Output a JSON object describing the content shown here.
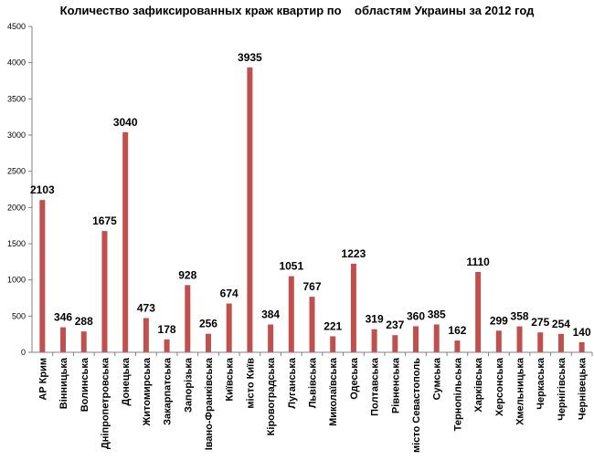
{
  "chart_data": {
    "type": "bar",
    "title": "Количество зафиксированных краж квартир по    областям Украины за 2012 год",
    "xlabel": "",
    "ylabel": "",
    "ylim": [
      0,
      4500
    ],
    "yticks": [
      0,
      500,
      1000,
      1500,
      2000,
      2500,
      3000,
      3500,
      4000,
      4500
    ],
    "grid": false,
    "bar_color": "#c0504d",
    "categories": [
      "АР Крим",
      "Вінницька",
      "Волинська",
      "Дніпропетровська",
      "Донецька",
      "Житомирська",
      "Закарпатська",
      "Запорізька",
      "Івано-Франківська",
      "Київська",
      "місто Київ",
      "Кіровоградська",
      "Луганська",
      "Львівська",
      "Миколаївська",
      "Одеська",
      "Полтавська",
      "Рівненська",
      "місто Севастополь",
      "Сумська",
      "Тернопільська",
      "Харківська",
      "Херсонська",
      "Хмельницька",
      "Черкаська",
      "Чернігівська",
      "Чернівецька"
    ],
    "values": [
      2103,
      346,
      288,
      1675,
      3040,
      473,
      178,
      928,
      256,
      674,
      3935,
      384,
      1051,
      767,
      221,
      1223,
      319,
      237,
      360,
      385,
      162,
      1110,
      299,
      358,
      275,
      254,
      140
    ],
    "data_labels": [
      "2103",
      "346",
      "288",
      "1675",
      "3040",
      "473",
      "178",
      "928",
      "256",
      "674",
      "3935",
      "384",
      "1051",
      "767",
      "221",
      "1223",
      "319",
      "237",
      "360",
      "385",
      "162",
      "1110",
      "299",
      "358",
      "275",
      "254",
      "140"
    ]
  }
}
